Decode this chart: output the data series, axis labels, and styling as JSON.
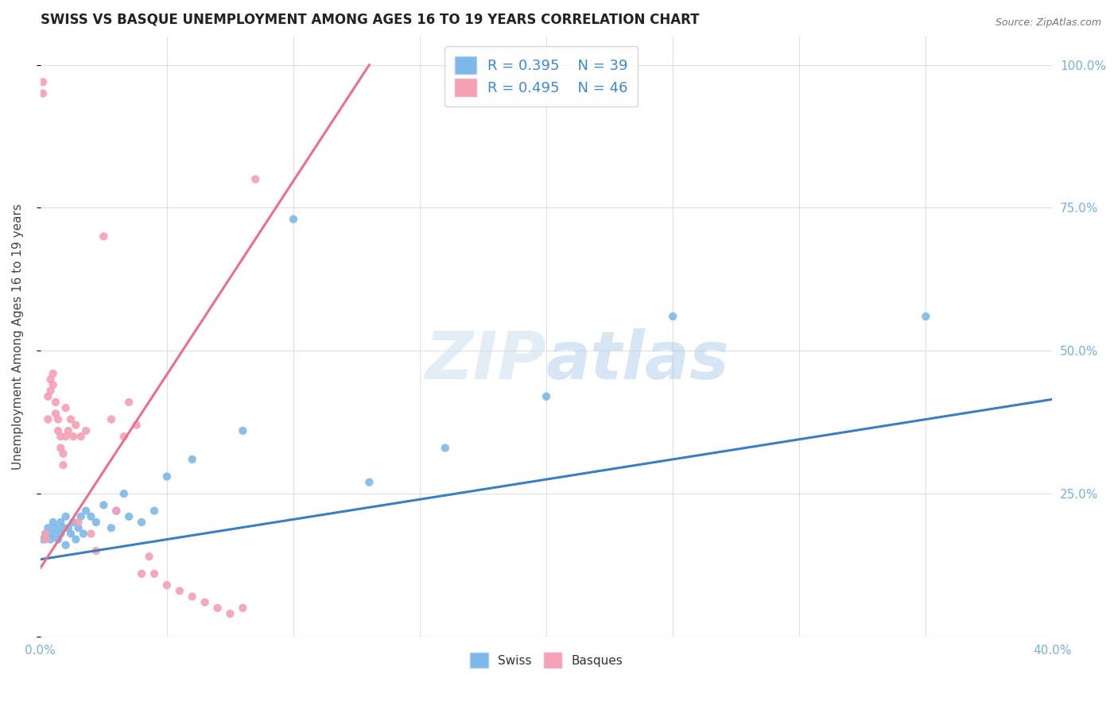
{
  "title": "SWISS VS BASQUE UNEMPLOYMENT AMONG AGES 16 TO 19 YEARS CORRELATION CHART",
  "source": "Source: ZipAtlas.com",
  "ylabel": "Unemployment Among Ages 16 to 19 years",
  "xlim": [
    0.0,
    0.4
  ],
  "ylim": [
    0.0,
    1.05
  ],
  "xtick_positions": [
    0.0,
    0.05,
    0.1,
    0.15,
    0.2,
    0.25,
    0.3,
    0.35,
    0.4
  ],
  "xticklabels": [
    "0.0%",
    "",
    "",
    "",
    "",
    "",
    "",
    "",
    "40.0%"
  ],
  "ytick_positions": [
    0.0,
    0.25,
    0.5,
    0.75,
    1.0
  ],
  "yticklabels": [
    "",
    "25.0%",
    "50.0%",
    "75.0%",
    "100.0%"
  ],
  "swiss_R": 0.395,
  "swiss_N": 39,
  "basque_R": 0.495,
  "basque_N": 46,
  "swiss_color": "#7db8e8",
  "basque_color": "#f4a0b5",
  "swiss_line_color": "#3a7fc1",
  "basque_line_color": "#e8708a",
  "watermark_color": "#ddeeff",
  "background_color": "#ffffff",
  "grid_color": "#e0e0e0",
  "swiss_x": [
    0.001,
    0.002,
    0.003,
    0.004,
    0.005,
    0.005,
    0.006,
    0.007,
    0.008,
    0.008,
    0.009,
    0.01,
    0.01,
    0.011,
    0.012,
    0.013,
    0.014,
    0.015,
    0.016,
    0.017,
    0.018,
    0.02,
    0.022,
    0.025,
    0.028,
    0.03,
    0.033,
    0.035,
    0.04,
    0.045,
    0.05,
    0.06,
    0.08,
    0.1,
    0.13,
    0.16,
    0.2,
    0.25,
    0.35
  ],
  "swiss_y": [
    0.17,
    0.18,
    0.19,
    0.17,
    0.2,
    0.18,
    0.19,
    0.17,
    0.2,
    0.18,
    0.19,
    0.16,
    0.21,
    0.19,
    0.18,
    0.2,
    0.17,
    0.19,
    0.21,
    0.18,
    0.22,
    0.21,
    0.2,
    0.23,
    0.19,
    0.22,
    0.25,
    0.21,
    0.2,
    0.22,
    0.28,
    0.31,
    0.36,
    0.73,
    0.27,
    0.33,
    0.42,
    0.56,
    0.56
  ],
  "basque_x": [
    0.001,
    0.001,
    0.002,
    0.002,
    0.003,
    0.003,
    0.004,
    0.004,
    0.005,
    0.005,
    0.006,
    0.006,
    0.007,
    0.007,
    0.008,
    0.008,
    0.009,
    0.009,
    0.01,
    0.01,
    0.011,
    0.012,
    0.013,
    0.014,
    0.015,
    0.016,
    0.018,
    0.02,
    0.022,
    0.025,
    0.028,
    0.03,
    0.033,
    0.035,
    0.038,
    0.04,
    0.043,
    0.045,
    0.05,
    0.055,
    0.06,
    0.065,
    0.07,
    0.075,
    0.08,
    0.085
  ],
  "basque_y": [
    0.95,
    0.97,
    0.18,
    0.17,
    0.38,
    0.42,
    0.43,
    0.45,
    0.44,
    0.46,
    0.39,
    0.41,
    0.36,
    0.38,
    0.33,
    0.35,
    0.3,
    0.32,
    0.4,
    0.35,
    0.36,
    0.38,
    0.35,
    0.37,
    0.2,
    0.35,
    0.36,
    0.18,
    0.15,
    0.7,
    0.38,
    0.22,
    0.35,
    0.41,
    0.37,
    0.11,
    0.14,
    0.11,
    0.09,
    0.08,
    0.07,
    0.06,
    0.05,
    0.04,
    0.05,
    0.8
  ],
  "swiss_line_x": [
    0.0,
    0.4
  ],
  "swiss_line_y": [
    0.135,
    0.415
  ],
  "basque_line_x": [
    0.0,
    0.13
  ],
  "basque_line_y": [
    0.12,
    1.0
  ]
}
